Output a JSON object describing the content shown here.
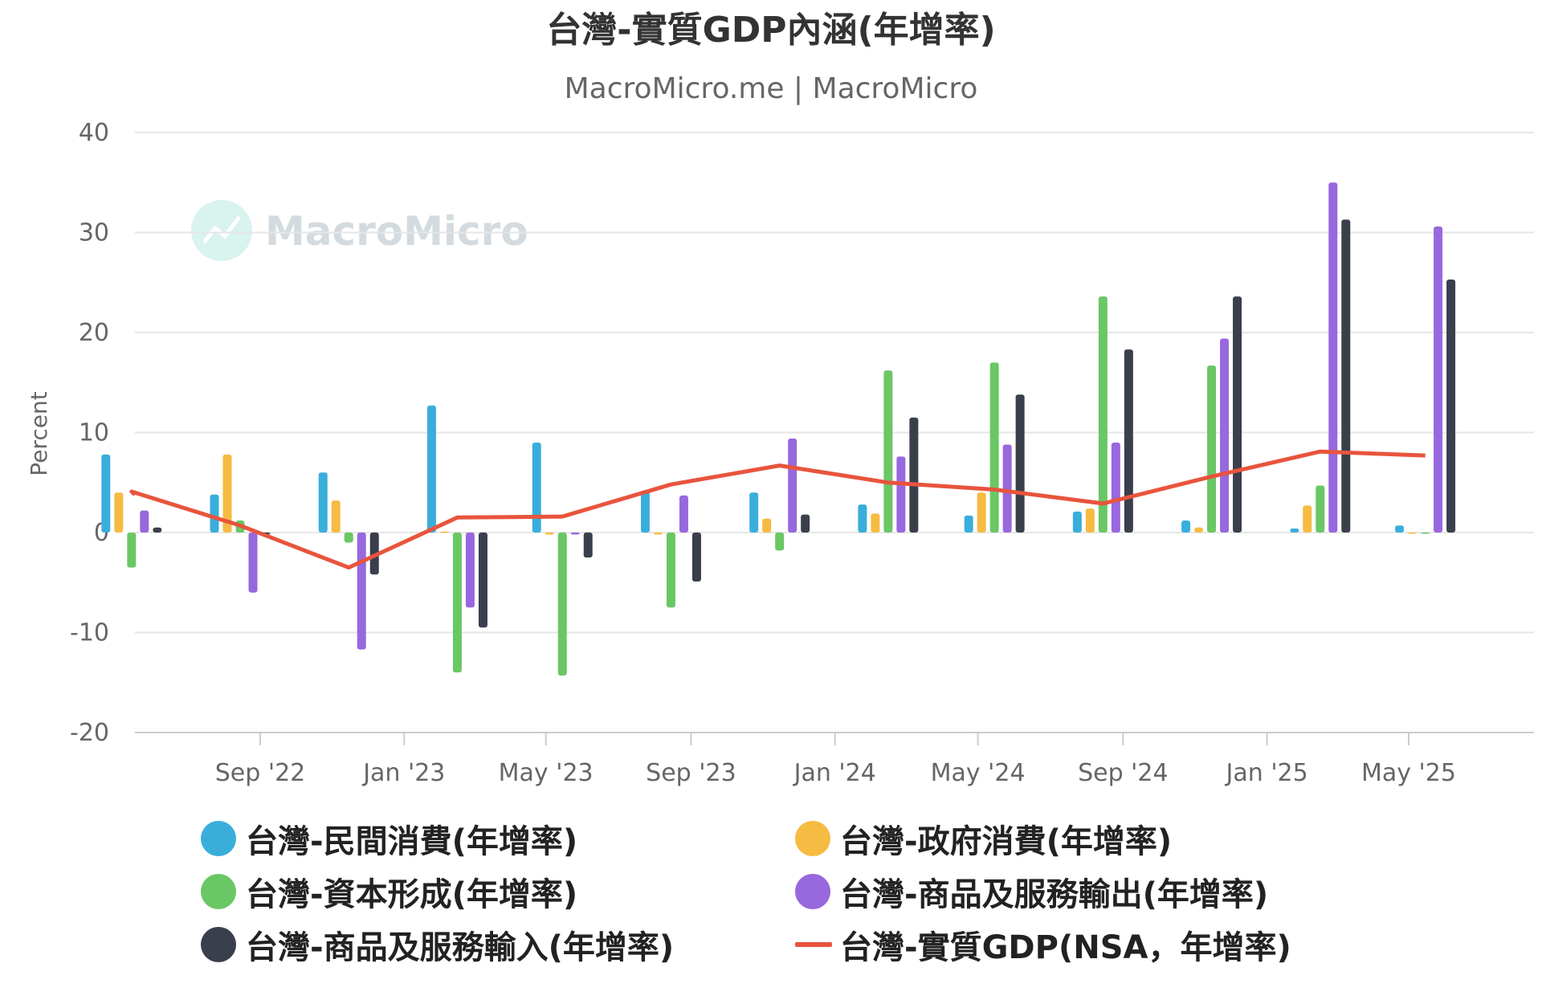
{
  "title": "台灣-實質GDP內涵(年增率)",
  "subtitle": "MacroMicro.me | MacroMicro",
  "watermark": "MacroMicro",
  "chart_data": {
    "type": "bar",
    "quarters": [
      "2022-Q2",
      "2022-Q3",
      "2022-Q4",
      "2023-Q1",
      "2023-Q2",
      "2023-Q3",
      "2023-Q4",
      "2024-Q1",
      "2024-Q2",
      "2024-Q3",
      "2024-Q4",
      "2025-Q1",
      "2025-Q2"
    ],
    "ylabel": "Percent",
    "ylim": [
      -20,
      40
    ],
    "yticks": [
      "40",
      "30",
      "20",
      "10",
      "0",
      "-10",
      "-20"
    ],
    "xticks": [
      {
        "label": "Sep '22",
        "date": "2022-09-01"
      },
      {
        "label": "Jan '23",
        "date": "2023-01-01"
      },
      {
        "label": "May '23",
        "date": "2023-05-01"
      },
      {
        "label": "Sep '23",
        "date": "2023-09-01"
      },
      {
        "label": "Jan '24",
        "date": "2024-01-01"
      },
      {
        "label": "May '24",
        "date": "2024-05-01"
      },
      {
        "label": "Sep '24",
        "date": "2024-09-01"
      },
      {
        "label": "Jan '25",
        "date": "2025-01-01"
      },
      {
        "label": "May '25",
        "date": "2025-05-01"
      }
    ],
    "grid": true,
    "legend_position": "bottom",
    "series": [
      {
        "name": "台灣-民間消費(年增率)",
        "color": "#3aaedb",
        "values": [
          7.8,
          3.8,
          6.0,
          12.7,
          9.0,
          4.2,
          4.0,
          2.8,
          1.7,
          2.1,
          1.2,
          0.4,
          0.7
        ]
      },
      {
        "name": "台灣-政府消費(年增率)",
        "color": "#f6bb42",
        "values": [
          4.0,
          7.8,
          3.2,
          0.1,
          -0.2,
          -0.2,
          1.4,
          1.9,
          4.0,
          2.4,
          0.5,
          2.7,
          0.0
        ]
      },
      {
        "name": "台灣-資本形成(年增率)",
        "color": "#6ac765",
        "values": [
          -3.5,
          1.2,
          -1.0,
          -14.0,
          -14.3,
          -7.5,
          -1.8,
          16.2,
          17.0,
          23.6,
          16.7,
          4.7,
          -0.1
        ]
      },
      {
        "name": "台灣-商品及服務輸出(年增率)",
        "color": "#9868de",
        "values": [
          2.2,
          -6.0,
          -11.7,
          -7.5,
          -0.2,
          3.7,
          9.4,
          7.6,
          8.8,
          9.0,
          19.4,
          35.0,
          30.6
        ]
      },
      {
        "name": "台灣-商品及服務輸入(年增率)",
        "color": "#3a3f4c",
        "values": [
          0.5,
          -0.2,
          -4.2,
          -9.5,
          -2.5,
          -4.9,
          1.8,
          11.5,
          13.8,
          18.3,
          23.6,
          31.3,
          25.3
        ]
      },
      {
        "name": "台灣-實質GDP(NSA，年增率)",
        "color": "#e8543d",
        "type": "line",
        "values": [
          4.1,
          0.7,
          -3.5,
          1.5,
          1.6,
          4.8,
          6.7,
          5.0,
          4.3,
          2.9,
          5.6,
          8.1,
          7.7
        ]
      }
    ]
  }
}
